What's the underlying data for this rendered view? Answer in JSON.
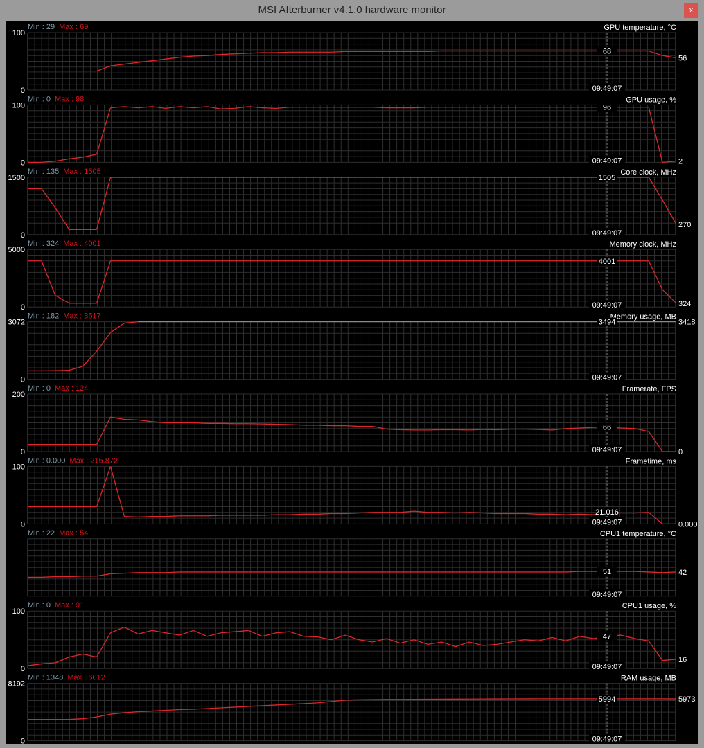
{
  "window": {
    "title": "MSI Afterburner v4.1.0 hardware monitor",
    "close_label": "x"
  },
  "cursor_time": "09:49:07",
  "colors": {
    "line": "#e0262b",
    "clipped_line": "#8a8a8a",
    "grid": "#2e2e2e",
    "min_label": "#7f9aa8",
    "max_label": "#d4141e",
    "text": "#ffffff",
    "window_bg": "#9b9b9b",
    "plot_bg": "#000000"
  },
  "panels": [
    {
      "name": "GPU temperature, °C",
      "min": "29",
      "max": "69",
      "axis_max": "100",
      "axis_min": "0",
      "ymax": 100,
      "cursor_value": "68",
      "current_value": "56",
      "values": [
        33,
        33,
        33,
        33,
        33,
        33,
        42,
        45,
        48,
        51,
        54,
        57,
        59,
        60,
        62,
        63,
        64,
        65,
        65,
        66,
        66,
        66,
        66,
        67,
        67,
        67,
        67,
        67,
        67,
        67,
        68,
        68,
        68,
        68,
        68,
        68,
        68,
        68,
        68,
        68,
        68,
        68,
        68,
        68,
        68,
        68,
        60,
        56
      ]
    },
    {
      "name": "GPU usage, %",
      "min": "0",
      "max": "98",
      "axis_max": "100",
      "axis_min": "0",
      "ymax": 100,
      "cursor_value": "96",
      "current_value": "2",
      "values": [
        0,
        0,
        2,
        6,
        9,
        14,
        95,
        97,
        95,
        97,
        94,
        97,
        95,
        97,
        93,
        94,
        97,
        95,
        94,
        96,
        96,
        96,
        96,
        96,
        96,
        96,
        95,
        95,
        95,
        96,
        96,
        96,
        96,
        96,
        96,
        96,
        96,
        96,
        96,
        96,
        96,
        96,
        96,
        96,
        96,
        96,
        0,
        2
      ]
    },
    {
      "name": "Core clock, MHz",
      "min": "135",
      "max": "1505",
      "axis_max": "1500",
      "axis_min": "0",
      "ymax": 1500,
      "cursor_value": "1505",
      "current_value": "270",
      "values": [
        1200,
        1200,
        700,
        135,
        135,
        135,
        1505,
        1505,
        1505,
        1505,
        1505,
        1505,
        1505,
        1505,
        1505,
        1505,
        1505,
        1505,
        1505,
        1505,
        1505,
        1505,
        1505,
        1505,
        1505,
        1505,
        1505,
        1505,
        1505,
        1505,
        1505,
        1505,
        1505,
        1505,
        1505,
        1505,
        1505,
        1505,
        1505,
        1505,
        1505,
        1505,
        1505,
        1505,
        1505,
        1505,
        900,
        270
      ]
    },
    {
      "name": "Memory clock, MHz",
      "min": "324",
      "max": "4001",
      "axis_max": "5000",
      "axis_min": "0",
      "ymax": 5000,
      "cursor_value": "4001",
      "current_value": "324",
      "values": [
        4001,
        4001,
        1000,
        324,
        324,
        324,
        4001,
        4001,
        4001,
        4001,
        4001,
        4001,
        4001,
        4001,
        4001,
        4001,
        4001,
        4001,
        4001,
        4001,
        4001,
        4001,
        4001,
        4001,
        4001,
        4001,
        4001,
        4001,
        4001,
        4001,
        4001,
        4001,
        4001,
        4001,
        4001,
        4001,
        4001,
        4001,
        4001,
        4001,
        4001,
        4001,
        4001,
        4001,
        4001,
        4001,
        1500,
        324
      ]
    },
    {
      "name": "Memory usage, MB",
      "min": "182",
      "max": "3517",
      "axis_max": "3072",
      "axis_min": "0",
      "ymax": 3072,
      "cursor_value": "3494",
      "current_value": "3418",
      "values": [
        450,
        450,
        460,
        480,
        700,
        1500,
        2500,
        3000,
        3072,
        3072,
        3072,
        3072,
        3494,
        3494,
        3494,
        3494,
        3494,
        3494,
        3494,
        3494,
        3494,
        3494,
        3494,
        3494,
        3494,
        3494,
        3494,
        3494,
        3494,
        3494,
        3494,
        3494,
        3494,
        3494,
        3494,
        3494,
        3494,
        3494,
        3494,
        3494,
        3494,
        3494,
        3494,
        3494,
        3494,
        3494,
        3418,
        3418
      ]
    },
    {
      "name": "Framerate, FPS",
      "min": "0",
      "max": "124",
      "axis_max": "200",
      "axis_min": "0",
      "ymax": 200,
      "cursor_value": "66",
      "current_value": "0",
      "values": [
        25,
        25,
        25,
        25,
        25,
        25,
        120,
        112,
        110,
        104,
        100,
        100,
        100,
        98,
        98,
        97,
        97,
        96,
        95,
        94,
        92,
        92,
        90,
        90,
        88,
        88,
        78,
        76,
        75,
        75,
        76,
        76,
        75,
        77,
        76,
        78,
        78,
        77,
        75,
        80,
        82,
        84,
        86,
        82,
        80,
        70,
        0,
        0
      ]
    },
    {
      "name": "Frametime, ms",
      "min": "0.000",
      "max": "215.872",
      "axis_max": "100",
      "axis_min": "0",
      "ymax": 100,
      "cursor_value": "21.016",
      "current_value": "0.000",
      "values": [
        30,
        30,
        30,
        30,
        30,
        30,
        100,
        13,
        12,
        13,
        13,
        14,
        14,
        14,
        15,
        15,
        15,
        15,
        16,
        16,
        17,
        17,
        18,
        18,
        19,
        20,
        20,
        20,
        22,
        20,
        20,
        19,
        20,
        19,
        18,
        18,
        18,
        17,
        17,
        16,
        17,
        16,
        21,
        19,
        19,
        20,
        0,
        0
      ]
    },
    {
      "name": "CPU1 temperature, °C",
      "min": "22",
      "max": "54",
      "axis_max": "",
      "axis_min": "",
      "ymax": 100,
      "cursor_value": "51",
      "current_value": "42",
      "values": [
        33,
        33,
        34,
        34,
        35,
        35,
        39,
        40,
        41,
        41,
        41,
        42,
        42,
        42,
        42,
        42,
        42,
        42,
        42,
        42,
        42,
        42,
        42,
        42,
        42,
        42,
        42,
        42,
        42,
        42,
        42,
        42,
        42,
        42,
        42,
        42,
        42,
        42,
        42,
        42,
        43,
        43,
        43,
        43,
        43,
        42,
        41,
        42
      ]
    },
    {
      "name": "CPU1 usage, %",
      "min": "0",
      "max": "91",
      "axis_max": "100",
      "axis_min": "0",
      "ymax": 100,
      "cursor_value": "47",
      "current_value": "16",
      "values": [
        5,
        8,
        10,
        20,
        25,
        20,
        62,
        72,
        60,
        66,
        62,
        58,
        66,
        56,
        62,
        64,
        66,
        56,
        62,
        64,
        56,
        55,
        50,
        58,
        50,
        46,
        52,
        44,
        50,
        42,
        46,
        38,
        46,
        40,
        42,
        46,
        50,
        48,
        54,
        48,
        56,
        52,
        56,
        58,
        52,
        48,
        14,
        16
      ]
    },
    {
      "name": "RAM usage, MB",
      "min": "1348",
      "max": "6012",
      "axis_max": "8192",
      "axis_min": "0",
      "ymax": 8192,
      "cursor_value": "5994",
      "current_value": "5973",
      "values": [
        3050,
        3050,
        3050,
        3050,
        3150,
        3400,
        3800,
        4000,
        4150,
        4250,
        4350,
        4450,
        4500,
        4600,
        4700,
        4800,
        4900,
        5000,
        5100,
        5200,
        5300,
        5400,
        5600,
        5800,
        5850,
        5880,
        5900,
        5910,
        5920,
        5930,
        5940,
        5950,
        5960,
        5970,
        5975,
        5980,
        5985,
        5990,
        5994,
        5994,
        5994,
        5994,
        5994,
        5994,
        5994,
        5994,
        5994,
        5973
      ]
    }
  ]
}
